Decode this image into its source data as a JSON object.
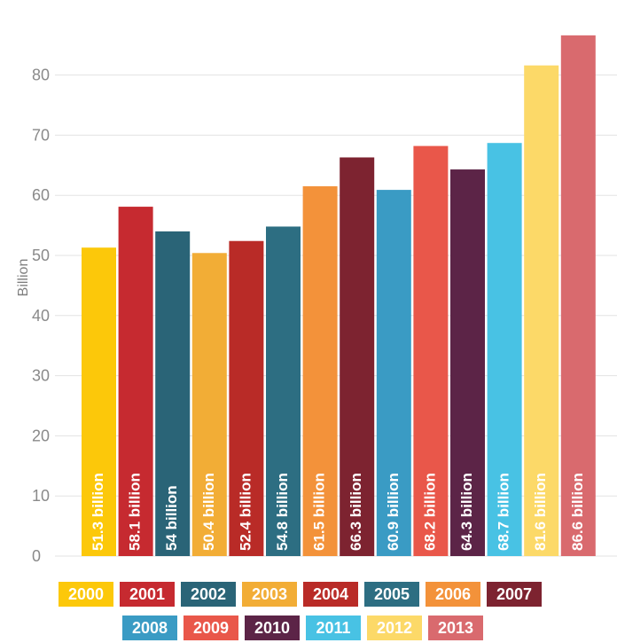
{
  "chart_data": {
    "type": "bar",
    "ylabel": "Billion",
    "ylim": [
      0,
      90
    ],
    "yticks": [
      0,
      10,
      20,
      30,
      40,
      50,
      60,
      70,
      80
    ],
    "grid": true,
    "legend_placement": "bottom",
    "categories": [
      "2000",
      "2001",
      "2002",
      "2003",
      "2004",
      "2005",
      "2006",
      "2007",
      "2008",
      "2009",
      "2010",
      "2011",
      "2012",
      "2013"
    ],
    "values": [
      51.3,
      58.1,
      54,
      50.4,
      52.4,
      54.8,
      61.5,
      66.3,
      60.9,
      68.2,
      64.3,
      68.7,
      81.6,
      86.6
    ],
    "data_labels": [
      "51.3 billion",
      "58.1 billion",
      "54 billion",
      "50.4 billion",
      "52.4 billion",
      "54.8 billion",
      "61.5 billion",
      "66.3 billion",
      "60.9 billion",
      "68.2 billion",
      "64.3 billion",
      "68.7 billion",
      "81.6 billion",
      "86.6 billion"
    ],
    "colors": [
      "#fcc80a",
      "#c62a30",
      "#2a6477",
      "#f2ad36",
      "#b92b27",
      "#2d6e82",
      "#f3923a",
      "#7d2330",
      "#3a9bc4",
      "#e9574a",
      "#5c2447",
      "#48c2e4",
      "#fcd968",
      "#d96a6e"
    ]
  }
}
